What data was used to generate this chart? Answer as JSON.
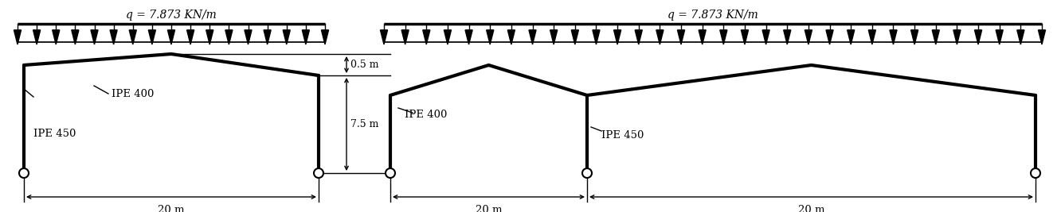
{
  "load_label_1": "q = 7.873 KN/m",
  "load_label_2": "q = 7.873 KN/m",
  "ipe400_label_L": "IPE 400",
  "ipe450_label_L": "IPE 450",
  "ipe400_label_R": "IPE 400",
  "ipe450_label_R": "IPE 450",
  "dim_05m": "0.5 m",
  "dim_75m": "7.5 m",
  "dim_20m_1": "20 m",
  "dim_20m_2": "20 m",
  "dim_20m_3": "20 m",
  "line_color": "#000000",
  "bg_color": "#ffffff",
  "frame_lw": 2.5,
  "thin_lw": 1.0,
  "load_lw": 1.5
}
